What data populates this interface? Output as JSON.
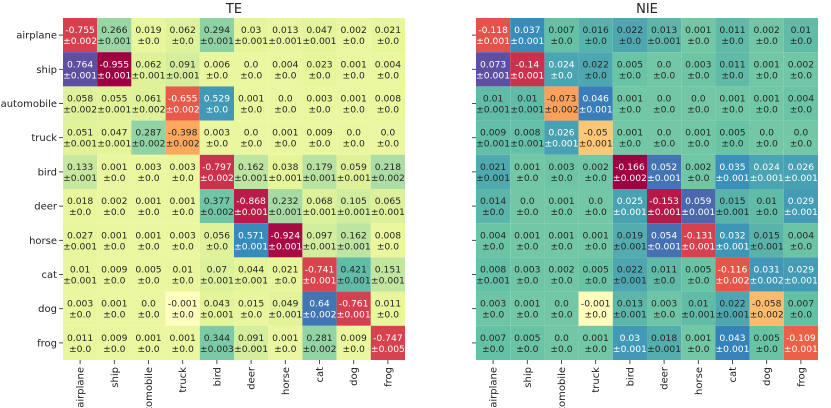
{
  "chart_data": [
    {
      "type": "heatmap",
      "title": "TE",
      "rows": [
        "airplane",
        "ship",
        "automobile",
        "truck",
        "bird",
        "deer",
        "horse",
        "cat",
        "dog",
        "frog"
      ],
      "cols": [
        "airplane",
        "ship",
        "automobile",
        "truck",
        "bird",
        "deer",
        "horse",
        "cat",
        "dog",
        "frog"
      ],
      "values": [
        [
          "-0.755",
          "0.266",
          "0.019",
          "0.062",
          "0.294",
          "0.03",
          "0.013",
          "0.047",
          "0.002",
          "0.021"
        ],
        [
          "0.764",
          "-0.955",
          "0.062",
          "0.091",
          "0.006",
          "0.0",
          "0.004",
          "0.023",
          "0.001",
          "0.004"
        ],
        [
          "0.058",
          "0.055",
          "0.061",
          "-0.655",
          "0.529",
          "0.001",
          "0.0",
          "0.003",
          "0.001",
          "0.008"
        ],
        [
          "0.051",
          "0.047",
          "0.287",
          "-0.398",
          "0.003",
          "0.0",
          "0.001",
          "0.009",
          "0.0",
          "0.0"
        ],
        [
          "0.133",
          "0.001",
          "0.003",
          "0.003",
          "-0.797",
          "0.162",
          "0.038",
          "0.179",
          "0.059",
          "0.218"
        ],
        [
          "0.018",
          "0.002",
          "0.001",
          "0.001",
          "0.377",
          "-0.868",
          "0.232",
          "0.068",
          "0.105",
          "0.065"
        ],
        [
          "0.027",
          "0.001",
          "0.001",
          "0.003",
          "0.056",
          "0.571",
          "-0.924",
          "0.097",
          "0.162",
          "0.008"
        ],
        [
          "0.01",
          "0.009",
          "0.005",
          "0.01",
          "0.07",
          "0.044",
          "0.021",
          "-0.741",
          "0.421",
          "0.151"
        ],
        [
          "0.003",
          "0.001",
          "0.0",
          "-0.001",
          "0.043",
          "0.015",
          "0.049",
          "0.64",
          "-0.761",
          "0.011"
        ],
        [
          "0.011",
          "0.009",
          "0.001",
          "0.001",
          "0.344",
          "0.091",
          "0.001",
          "0.281",
          "0.009",
          "-0.747"
        ]
      ],
      "errors": [
        [
          "±0.002",
          "±0.001",
          "±0.0",
          "±0.0",
          "±0.001",
          "±0.001",
          "±0.001",
          "±0.001",
          "±0.0",
          "±0.0"
        ],
        [
          "±0.001",
          "±0.001",
          "±0.001",
          "±0.001",
          "±0.0",
          "±0.0",
          "±0.0",
          "±0.0",
          "±0.0",
          "±0.0"
        ],
        [
          "±0.002",
          "±0.001",
          "±0.002",
          "±0.002",
          "±0.0",
          "±0.0",
          "±0.0",
          "±0.0",
          "±0.0",
          "±0.0"
        ],
        [
          "±0.001",
          "±0.001",
          "±0.002",
          "±0.002",
          "±0.0",
          "±0.0",
          "±0.0",
          "±0.0",
          "±0.0",
          "±0.0"
        ],
        [
          "±0.001",
          "±0.0",
          "±0.0",
          "±0.0",
          "±0.002",
          "±0.001",
          "±0.001",
          "±0.001",
          "±0.001",
          "±0.002"
        ],
        [
          "±0.0",
          "±0.0",
          "±0.0",
          "±0.0",
          "±0.002",
          "±0.001",
          "±0.001",
          "±0.001",
          "±0.001",
          "±0.001"
        ],
        [
          "±0.001",
          "±0.0",
          "±0.0",
          "±0.0",
          "±0.0",
          "±0.001",
          "±0.001",
          "±0.001",
          "±0.001",
          "±0.0"
        ],
        [
          "±0.001",
          "±0.0",
          "±0.0",
          "±0.0",
          "±0.001",
          "±0.001",
          "±0.0",
          "±0.001",
          "±0.001",
          "±0.001"
        ],
        [
          "±0.0",
          "±0.0",
          "±0.0",
          "±0.0",
          "±0.001",
          "±0.0",
          "±0.001",
          "±0.002",
          "±0.001",
          "±0.0"
        ],
        [
          "±0.0",
          "±0.0",
          "±0.0",
          "±0.0",
          "±0.003",
          "±0.001",
          "±0.0",
          "±0.002",
          "±0.0",
          "±0.005"
        ]
      ],
      "color_range": [
        -0.955,
        0.764
      ]
    },
    {
      "type": "heatmap",
      "title": "NIE",
      "rows": [
        "airplane",
        "ship",
        "automobile",
        "truck",
        "bird",
        "deer",
        "horse",
        "cat",
        "dog",
        "frog"
      ],
      "cols": [
        "airplane",
        "ship",
        "automobile",
        "truck",
        "bird",
        "deer",
        "horse",
        "cat",
        "dog",
        "frog"
      ],
      "values": [
        [
          "-0.118",
          "0.037",
          "0.007",
          "0.016",
          "0.022",
          "0.013",
          "0.001",
          "0.011",
          "0.002",
          "0.01"
        ],
        [
          "0.073",
          "-0.14",
          "0.024",
          "0.022",
          "0.005",
          "0.0",
          "0.003",
          "0.011",
          "0.001",
          "0.002"
        ],
        [
          "0.01",
          "0.01",
          "-0.073",
          "0.046",
          "0.001",
          "0.0",
          "0.0",
          "0.001",
          "0.001",
          "0.004"
        ],
        [
          "0.009",
          "0.008",
          "0.026",
          "-0.05",
          "0.001",
          "0.0",
          "0.001",
          "0.005",
          "0.0",
          "0.0"
        ],
        [
          "0.021",
          "0.001",
          "0.003",
          "0.002",
          "-0.166",
          "0.052",
          "0.002",
          "0.035",
          "0.024",
          "0.026"
        ],
        [
          "0.014",
          "0.0",
          "0.001",
          "0.0",
          "0.025",
          "-0.153",
          "0.059",
          "0.015",
          "0.01",
          "0.029"
        ],
        [
          "0.004",
          "0.001",
          "0.001",
          "0.001",
          "0.019",
          "0.054",
          "-0.131",
          "0.032",
          "0.015",
          "0.004"
        ],
        [
          "0.008",
          "0.003",
          "0.002",
          "0.005",
          "0.022",
          "0.011",
          "0.005",
          "-0.116",
          "0.031",
          "0.029"
        ],
        [
          "0.003",
          "0.001",
          "0.0",
          "-0.001",
          "0.013",
          "0.003",
          "0.01",
          "0.022",
          "-0.058",
          "0.007"
        ],
        [
          "0.007",
          "0.005",
          "0.0",
          "0.001",
          "0.03",
          "0.018",
          "0.001",
          "0.043",
          "0.005",
          "-0.109"
        ]
      ],
      "errors": [
        [
          "±0.001",
          "±0.001",
          "±0.0",
          "±0.0",
          "±0.0",
          "±0.001",
          "±0.0",
          "±0.0",
          "±0.0",
          "±0.0"
        ],
        [
          "±0.001",
          "±0.001",
          "±0.0",
          "±0.0",
          "±0.0",
          "±0.0",
          "±0.0",
          "±0.0",
          "±0.0",
          "±0.0"
        ],
        [
          "±0.001",
          "±0.001",
          "±0.002",
          "±0.001",
          "±0.0",
          "±0.0",
          "±0.0",
          "±0.0",
          "±0.0",
          "±0.0"
        ],
        [
          "±0.001",
          "±0.001",
          "±0.001",
          "±0.001",
          "±0.0",
          "±0.0",
          "±0.0",
          "±0.0",
          "±0.0",
          "±0.0"
        ],
        [
          "±0.001",
          "±0.0",
          "±0.0",
          "±0.0",
          "±0.002",
          "±0.001",
          "±0.0",
          "±0.001",
          "±0.001",
          "±0.001"
        ],
        [
          "±0.0",
          "±0.0",
          "±0.0",
          "±0.0",
          "±0.001",
          "±0.001",
          "±0.001",
          "±0.001",
          "±0.0",
          "±0.001"
        ],
        [
          "±0.0",
          "±0.0",
          "±0.0",
          "±0.0",
          "±0.001",
          "±0.001",
          "±0.001",
          "±0.001",
          "±0.001",
          "±0.0"
        ],
        [
          "±0.001",
          "±0.0",
          "±0.0",
          "±0.0",
          "±0.001",
          "±0.0",
          "±0.0",
          "±0.002",
          "±0.002",
          "±0.001"
        ],
        [
          "±0.0",
          "±0.0",
          "±0.0",
          "±0.0",
          "±0.001",
          "±0.0",
          "±0.001",
          "±0.001",
          "±0.002",
          "±0.0"
        ],
        [
          "±0.0",
          "±0.0",
          "±0.0",
          "±0.0",
          "±0.001",
          "±0.001",
          "±0.0",
          "±0.001",
          "±0.0",
          "±0.001"
        ]
      ],
      "color_range": [
        -0.166,
        0.073
      ]
    }
  ]
}
